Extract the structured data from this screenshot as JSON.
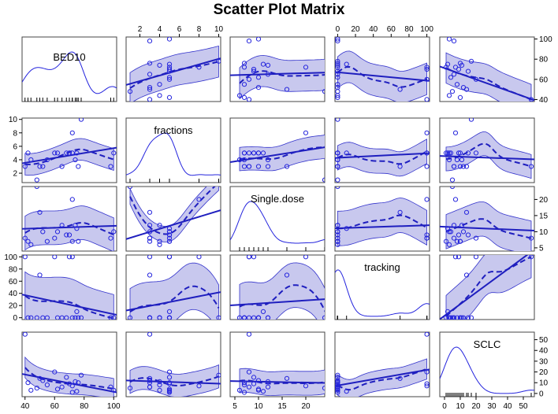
{
  "chart_data": {
    "type": "scatter-matrix",
    "title": "Scatter Plot Matrix",
    "variables": [
      "BED10",
      "fractions",
      "Single.dose",
      "tracking",
      "SCLC"
    ],
    "accent_color": "#1f1fbf",
    "band_color": "#c8c8ee",
    "ranges": {
      "BED10": [
        38,
        102
      ],
      "fractions": [
        0.6,
        10.2
      ],
      "Single.dose": [
        4,
        24
      ],
      "tracking": [
        -3,
        103
      ],
      "SCLC": [
        -3,
        57
      ]
    },
    "ticks": {
      "BED10": [
        40,
        60,
        80,
        100
      ],
      "fractions": [
        2,
        4,
        6,
        8,
        10
      ],
      "Single.dose": [
        5,
        10,
        15,
        20
      ],
      "tracking": [
        0,
        20,
        40,
        60,
        80,
        100
      ],
      "SCLC": [
        0,
        10,
        20,
        30,
        40,
        50
      ]
    },
    "axis_sides": {
      "top": [
        "fractions",
        "tracking"
      ],
      "bottom": [
        "BED10",
        "Single.dose",
        "SCLC"
      ],
      "left": [
        "fractions",
        "tracking"
      ],
      "right": [
        "BED10",
        "Single.dose",
        "SCLC"
      ]
    },
    "observations": [
      {
        "BED10": 40,
        "fractions": 3,
        "Single.dose": 8,
        "tracking": 100,
        "SCLC": 55
      },
      {
        "BED10": 42,
        "fractions": 5,
        "Single.dose": 7,
        "tracking": 0,
        "SCLC": 10
      },
      {
        "BED10": 44,
        "fractions": 4,
        "Single.dose": 6,
        "tracking": 0,
        "SCLC": 3
      },
      {
        "BED10": 48,
        "fractions": 1,
        "Single.dose": 24,
        "tracking": 0,
        "SCLC": 5
      },
      {
        "BED10": 50,
        "fractions": 3,
        "Single.dose": 16,
        "tracking": 70,
        "SCLC": 14
      },
      {
        "BED10": 52,
        "fractions": 3,
        "Single.dose": 10,
        "tracking": 0,
        "SCLC": 12
      },
      {
        "BED10": 55,
        "fractions": 4,
        "Single.dose": 7,
        "tracking": 0,
        "SCLC": 8
      },
      {
        "BED10": 60,
        "fractions": 5,
        "Single.dose": 8,
        "tracking": 100,
        "SCLC": 20
      },
      {
        "BED10": 62,
        "fractions": 5,
        "Single.dose": 10,
        "tracking": 0,
        "SCLC": 4
      },
      {
        "BED10": 65,
        "fractions": 3,
        "Single.dose": 12,
        "tracking": 0,
        "SCLC": 6
      },
      {
        "BED10": 68,
        "fractions": 5,
        "Single.dose": 9,
        "tracking": 0,
        "SCLC": 15
      },
      {
        "BED10": 70,
        "fractions": 5,
        "Single.dose": 9,
        "tracking": 100,
        "SCLC": 9
      },
      {
        "BED10": 72,
        "fractions": 8,
        "Single.dose": 20,
        "tracking": 100,
        "SCLC": 7
      },
      {
        "BED10": 74,
        "fractions": 4,
        "Single.dose": 12,
        "tracking": 0,
        "SCLC": 11
      },
      {
        "BED10": 75,
        "fractions": 5,
        "Single.dose": 11,
        "tracking": 10,
        "SCLC": 2
      },
      {
        "BED10": 76,
        "fractions": 3,
        "Single.dose": 7,
        "tracking": 0,
        "SCLC": 10
      },
      {
        "BED10": 78,
        "fractions": 10,
        "Single.dose": 25,
        "tracking": 0,
        "SCLC": 17
      },
      {
        "BED10": 100,
        "fractions": 5,
        "Single.dose": 10,
        "tracking": 0,
        "SCLC": 3
      },
      {
        "BED10": 98,
        "fractions": 3,
        "Single.dose": 8,
        "tracking": 0,
        "SCLC": 6
      },
      {
        "BED10": 72,
        "fractions": 5,
        "Single.dose": 7,
        "tracking": 0,
        "SCLC": 1
      }
    ],
    "panel_types": {
      "diagonal": "kernel density with rug",
      "off_diagonal": "scatter with linear fit, loess smooth (dashed) and confidence band"
    }
  }
}
